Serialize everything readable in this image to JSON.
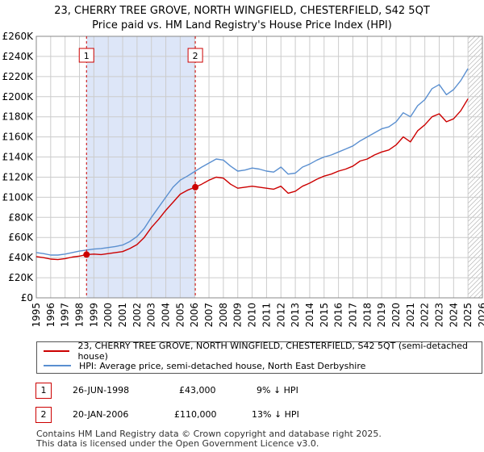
{
  "title_line1": "23, CHERRY TREE GROVE, NORTH WINGFIELD, CHESTERFIELD, S42 5QT",
  "title_line2": "Price paid vs. HM Land Registry's House Price Index (HPI)",
  "colors": {
    "property": "#cc0000",
    "hpi": "#5a8fd0",
    "shade": "#dde6f8",
    "marker_line": "#cc0000",
    "grid": "#cccccc"
  },
  "chart_data": {
    "type": "line",
    "xlim": [
      1995,
      2026
    ],
    "ylim": [
      0,
      260000
    ],
    "x_ticks": [
      "1995",
      "1996",
      "1997",
      "1998",
      "1999",
      "2000",
      "2001",
      "2002",
      "2003",
      "2004",
      "2005",
      "2006",
      "2007",
      "2008",
      "2009",
      "2010",
      "2011",
      "2012",
      "2013",
      "2014",
      "2015",
      "2016",
      "2017",
      "2018",
      "2019",
      "2020",
      "2021",
      "2022",
      "2023",
      "2024",
      "2025",
      "2026"
    ],
    "y_ticks": [
      "£0",
      "£20K",
      "£40K",
      "£60K",
      "£80K",
      "£100K",
      "£120K",
      "£140K",
      "£160K",
      "£180K",
      "£200K",
      "£220K",
      "£240K",
      "£260K"
    ],
    "grid": true,
    "shaded_period": [
      1998.49,
      2006.05
    ],
    "hatched_from": 2025.0,
    "series": [
      {
        "name": "23, CHERRY TREE GROVE, NORTH WINGFIELD, CHESTERFIELD, S42 5QT (semi-detached house)",
        "color": "#cc0000",
        "points": [
          [
            1995.0,
            41000
          ],
          [
            1995.5,
            40000
          ],
          [
            1996.0,
            38500
          ],
          [
            1996.5,
            38000
          ],
          [
            1997.0,
            39000
          ],
          [
            1997.5,
            40500
          ],
          [
            1998.0,
            41500
          ],
          [
            1998.49,
            43000
          ],
          [
            1999.0,
            43500
          ],
          [
            1999.5,
            43000
          ],
          [
            2000.0,
            44000
          ],
          [
            2000.5,
            45000
          ],
          [
            2001.0,
            46000
          ],
          [
            2001.5,
            49000
          ],
          [
            2002.0,
            53000
          ],
          [
            2002.5,
            60000
          ],
          [
            2003.0,
            70000
          ],
          [
            2003.5,
            78000
          ],
          [
            2004.0,
            87000
          ],
          [
            2004.5,
            95000
          ],
          [
            2005.0,
            103000
          ],
          [
            2005.5,
            107000
          ],
          [
            2006.05,
            110000
          ],
          [
            2006.5,
            113000
          ],
          [
            2007.0,
            117000
          ],
          [
            2007.5,
            120000
          ],
          [
            2008.0,
            119000
          ],
          [
            2008.5,
            113000
          ],
          [
            2009.0,
            109000
          ],
          [
            2009.5,
            110000
          ],
          [
            2010.0,
            111000
          ],
          [
            2010.5,
            110000
          ],
          [
            2011.0,
            109000
          ],
          [
            2011.5,
            108000
          ],
          [
            2012.0,
            111000
          ],
          [
            2012.5,
            104000
          ],
          [
            2013.0,
            106000
          ],
          [
            2013.5,
            111000
          ],
          [
            2014.0,
            114000
          ],
          [
            2014.5,
            118000
          ],
          [
            2015.0,
            121000
          ],
          [
            2015.5,
            123000
          ],
          [
            2016.0,
            126000
          ],
          [
            2016.5,
            128000
          ],
          [
            2017.0,
            131000
          ],
          [
            2017.5,
            136000
          ],
          [
            2018.0,
            138000
          ],
          [
            2018.5,
            142000
          ],
          [
            2019.0,
            145000
          ],
          [
            2019.5,
            147000
          ],
          [
            2020.0,
            152000
          ],
          [
            2020.5,
            160000
          ],
          [
            2021.0,
            155000
          ],
          [
            2021.5,
            166000
          ],
          [
            2022.0,
            172000
          ],
          [
            2022.5,
            180000
          ],
          [
            2023.0,
            183000
          ],
          [
            2023.5,
            175000
          ],
          [
            2024.0,
            178000
          ],
          [
            2024.5,
            186000
          ],
          [
            2025.0,
            198000
          ]
        ]
      },
      {
        "name": "HPI: Average price, semi-detached house, North East Derbyshire",
        "color": "#5a8fd0",
        "points": [
          [
            1995.0,
            45000
          ],
          [
            1995.5,
            44000
          ],
          [
            1996.0,
            42500
          ],
          [
            1996.5,
            42500
          ],
          [
            1997.0,
            43500
          ],
          [
            1997.5,
            45000
          ],
          [
            1998.0,
            46500
          ],
          [
            1998.49,
            47500
          ],
          [
            1999.0,
            48500
          ],
          [
            1999.5,
            49000
          ],
          [
            2000.0,
            50000
          ],
          [
            2000.5,
            51000
          ],
          [
            2001.0,
            52500
          ],
          [
            2001.5,
            56000
          ],
          [
            2002.0,
            61000
          ],
          [
            2002.5,
            69000
          ],
          [
            2003.0,
            80000
          ],
          [
            2003.5,
            90000
          ],
          [
            2004.0,
            100000
          ],
          [
            2004.5,
            110000
          ],
          [
            2005.0,
            117000
          ],
          [
            2005.5,
            121000
          ],
          [
            2006.05,
            126000
          ],
          [
            2006.5,
            130000
          ],
          [
            2007.0,
            134000
          ],
          [
            2007.5,
            138000
          ],
          [
            2008.0,
            137000
          ],
          [
            2008.5,
            131000
          ],
          [
            2009.0,
            126000
          ],
          [
            2009.5,
            127000
          ],
          [
            2010.0,
            129000
          ],
          [
            2010.5,
            128000
          ],
          [
            2011.0,
            126000
          ],
          [
            2011.5,
            125000
          ],
          [
            2012.0,
            130000
          ],
          [
            2012.5,
            123000
          ],
          [
            2013.0,
            124000
          ],
          [
            2013.5,
            130000
          ],
          [
            2014.0,
            133000
          ],
          [
            2014.5,
            137000
          ],
          [
            2015.0,
            140000
          ],
          [
            2015.5,
            142000
          ],
          [
            2016.0,
            145000
          ],
          [
            2016.5,
            148000
          ],
          [
            2017.0,
            151000
          ],
          [
            2017.5,
            156000
          ],
          [
            2018.0,
            160000
          ],
          [
            2018.5,
            164000
          ],
          [
            2019.0,
            168000
          ],
          [
            2019.5,
            170000
          ],
          [
            2020.0,
            175000
          ],
          [
            2020.5,
            184000
          ],
          [
            2021.0,
            180000
          ],
          [
            2021.5,
            191000
          ],
          [
            2022.0,
            197000
          ],
          [
            2022.5,
            208000
          ],
          [
            2023.0,
            212000
          ],
          [
            2023.5,
            202000
          ],
          [
            2024.0,
            207000
          ],
          [
            2024.5,
            216000
          ],
          [
            2025.0,
            228000
          ]
        ]
      }
    ],
    "markers": [
      {
        "label": "1",
        "x": 1998.49,
        "y": 43000
      },
      {
        "label": "2",
        "x": 2006.05,
        "y": 110000
      }
    ]
  },
  "legend": {
    "property_label": "23, CHERRY TREE GROVE, NORTH WINGFIELD, CHESTERFIELD, S42 5QT (semi-detached house)",
    "hpi_label": "HPI: Average price, semi-detached house, North East Derbyshire"
  },
  "transactions": [
    {
      "num": "1",
      "date": "26-JUN-1998",
      "price": "£43,000",
      "hpi": "9% ↓ HPI"
    },
    {
      "num": "2",
      "date": "20-JAN-2006",
      "price": "£110,000",
      "hpi": "13% ↓ HPI"
    }
  ],
  "footer": {
    "line1": "Contains HM Land Registry data © Crown copyright and database right 2025.",
    "line2": "This data is licensed under the Open Government Licence v3.0."
  }
}
